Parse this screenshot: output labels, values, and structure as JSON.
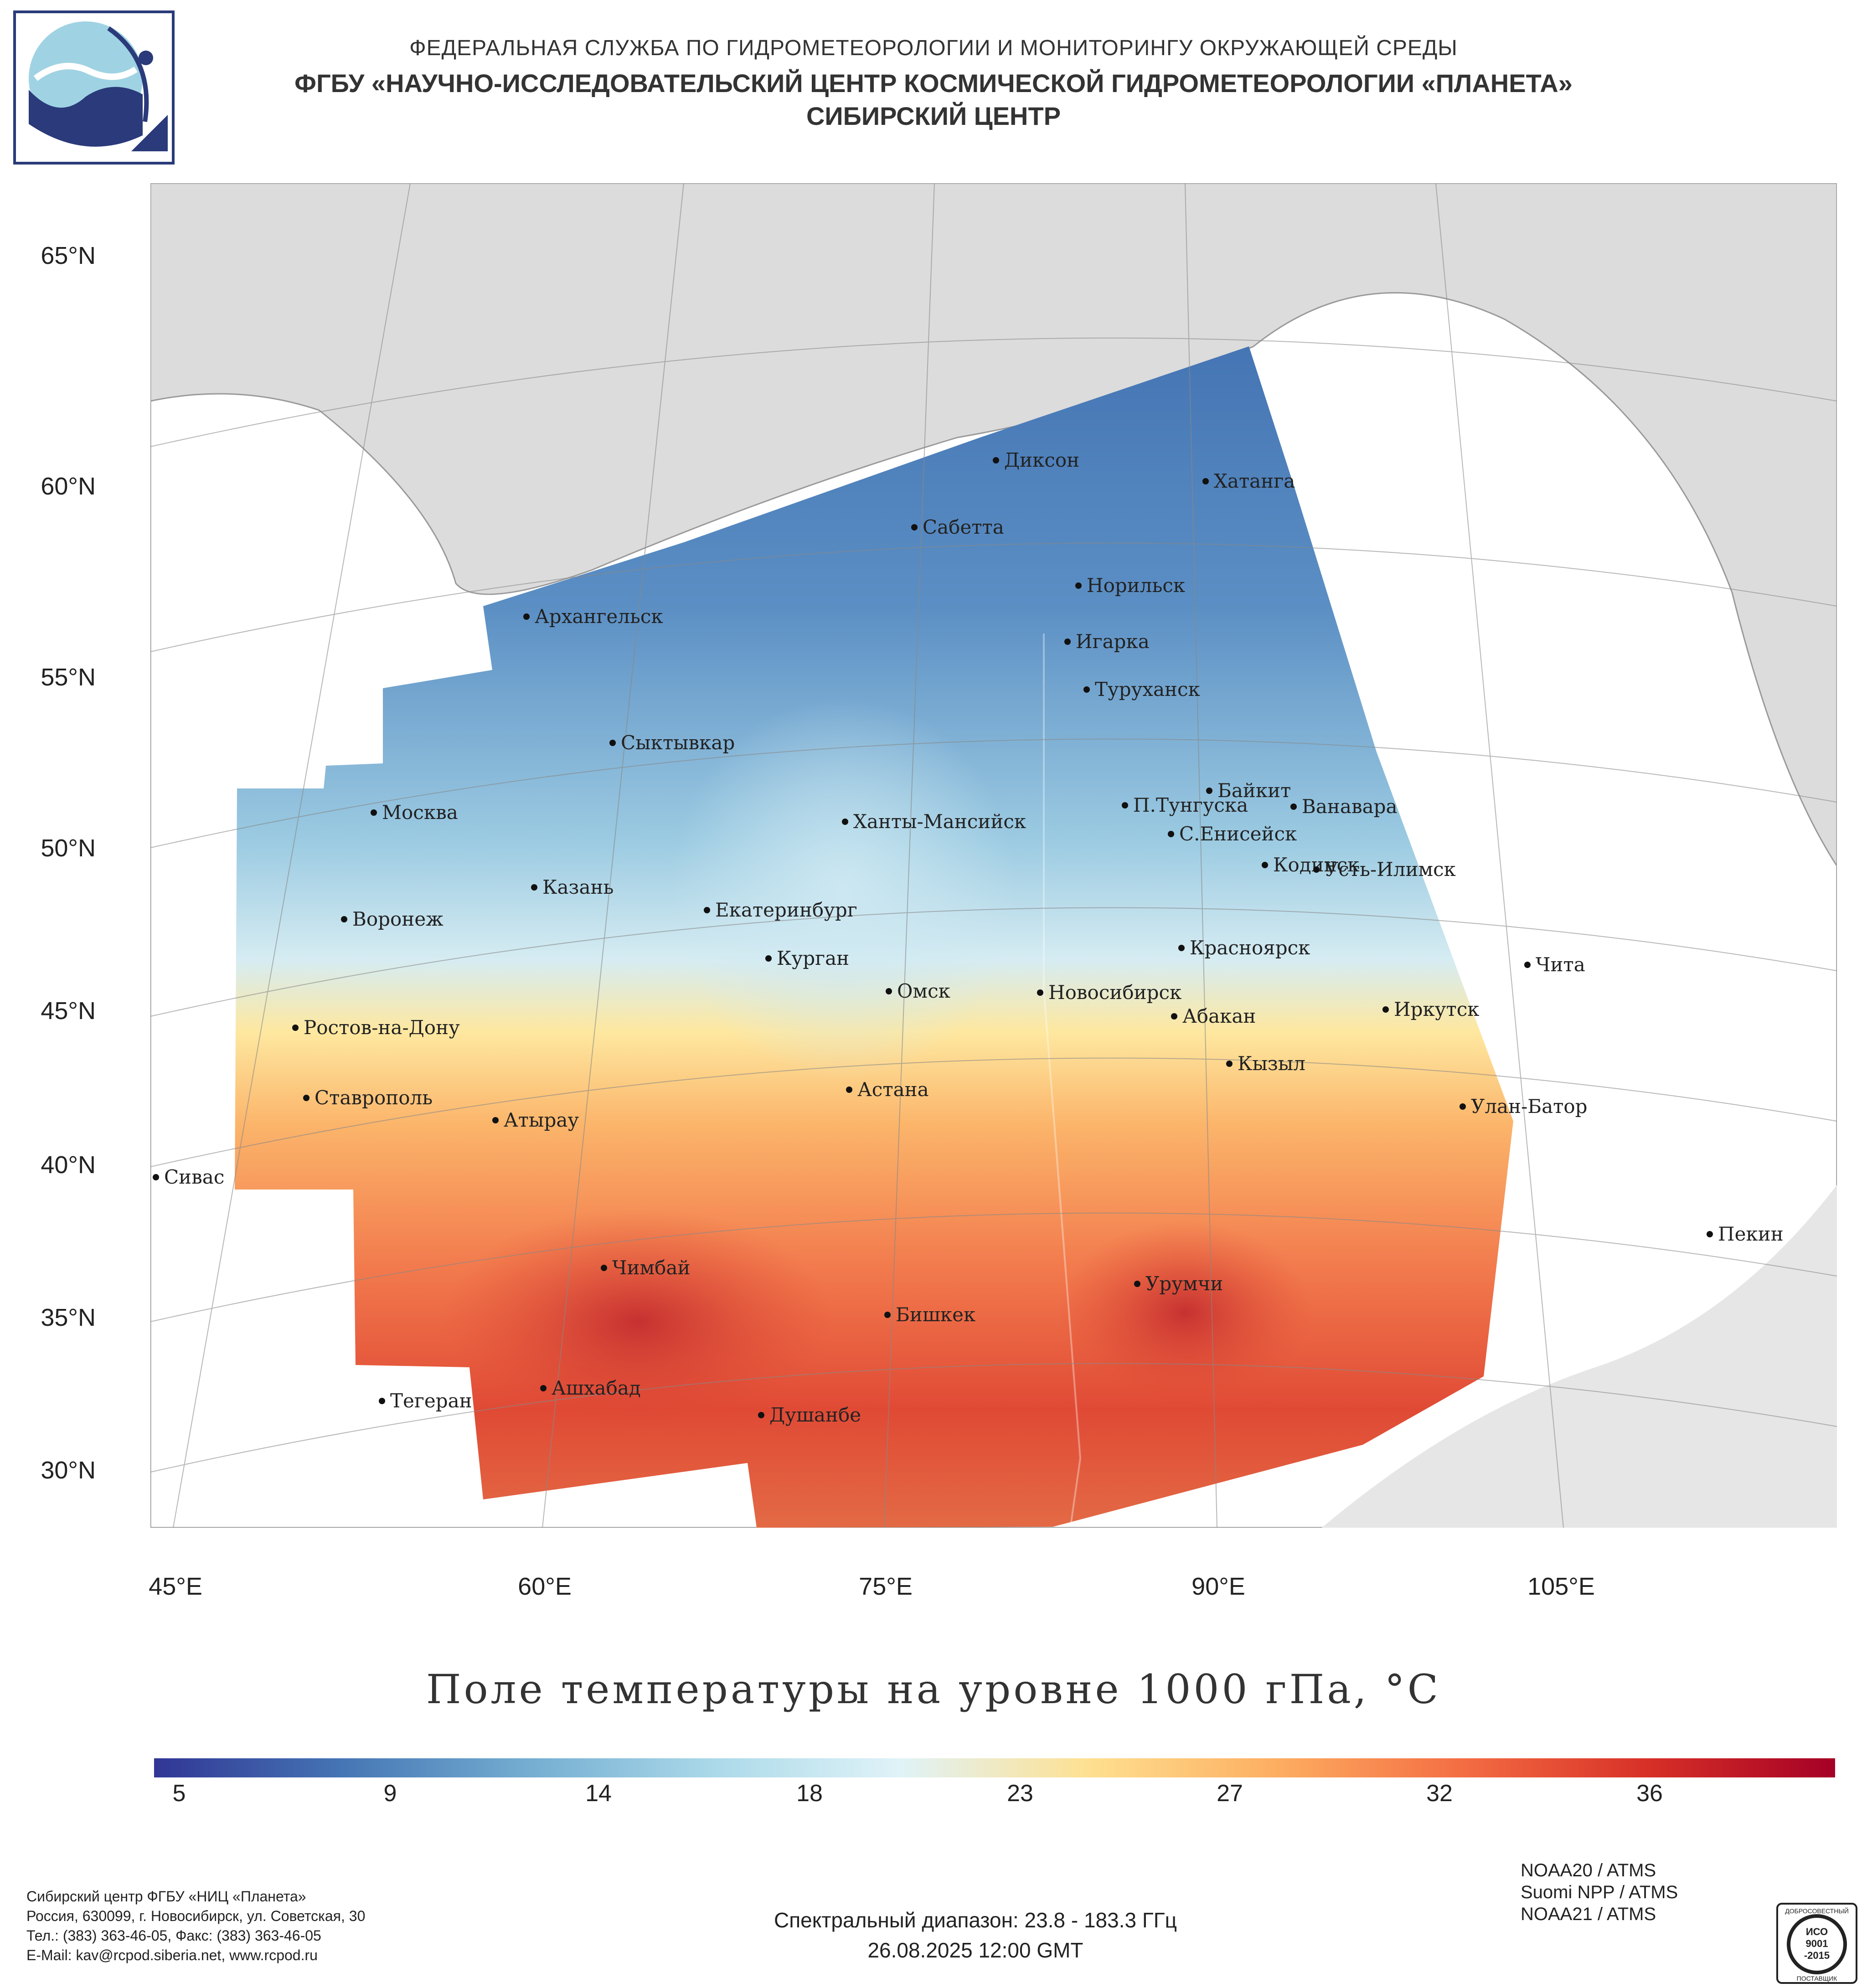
{
  "header": {
    "line1": "ФЕДЕРАЛЬНАЯ СЛУЖБА ПО ГИДРОМЕТЕОРОЛОГИИ И МОНИТОРИНГУ ОКРУЖАЮЩЕЙ СРЕДЫ",
    "line2": "ФГБУ «НАУЧНО-ИССЛЕДОВАТЕЛЬСКИЙ ЦЕНТР КОСМИЧЕСКОЙ ГИДРОМЕТЕОРОЛОГИИ «ПЛАНЕТА»",
    "line3": "СИБИРСКИЙ ЦЕНТР"
  },
  "map": {
    "lat_labels": [
      "65°N",
      "60°N",
      "55°N",
      "50°N",
      "45°N",
      "40°N",
      "35°N",
      "30°N"
    ],
    "lon_labels": [
      "45°E",
      "60°E",
      "75°E",
      "90°E",
      "105°E"
    ],
    "cities": [
      "Диксон",
      "Хатанга",
      "Сабетта",
      "Норильск",
      "Архангельск",
      "Игарка",
      "Туруханск",
      "Сыктывкар",
      "Байкит",
      "П.Тунгуска",
      "Ванавара",
      "Москва",
      "Ханты-Мансийск",
      "С.Енисейск",
      "Кодинск",
      "Усть-Илимск",
      "Казань",
      "Екатеринбург",
      "Воронеж",
      "Красноярск",
      "Курган",
      "Чита",
      "Омск",
      "Новосибирск",
      "Иркутск",
      "Абакан",
      "Ростов-на-Дону",
      "Кызыл",
      "Астана",
      "Ставрополь",
      "Улан-Батор",
      "Атырау",
      "Сивас",
      "Пекин",
      "Чимбай",
      "Урумчи",
      "Бишкек",
      "Ашхабад",
      "Тегеран",
      "Душанбе"
    ]
  },
  "title": "Поле температуры на уровне 1000 гПа, °C",
  "colorbar": {
    "ticks": [
      "5",
      "9",
      "14",
      "18",
      "23",
      "27",
      "32",
      "36"
    ],
    "colors": [
      "#313695",
      "#4575b4",
      "#74add1",
      "#abd9e9",
      "#e0f3f8",
      "#fee090",
      "#fdae61",
      "#f46d43",
      "#d73027",
      "#a50026"
    ]
  },
  "footer": {
    "org_lines": [
      "Сибирский центр ФГБУ «НИЦ «Планета»",
      "Россия, 630099, г. Новосибирск, ул. Советская, 30",
      "Тел.: (383) 363-46-05, Факс: (383) 363-46-05",
      "E-Mail: kav@rcpod.siberia.net, www.rcpod.ru"
    ],
    "spectral": "Спектральный диапазон: 23.8 - 183.3 ГГц",
    "datetime": "26.08.2025 12:00 GMT",
    "instruments": [
      "NOAA20 / ATMS",
      "Suomi NPP / ATMS",
      "NOAA21 / ATMS"
    ],
    "iso_text": [
      "ДОБРОСОВЕСТНЫЙ",
      "ИСО",
      "9001",
      "-2015",
      "ПОСТАВЩИК"
    ]
  }
}
